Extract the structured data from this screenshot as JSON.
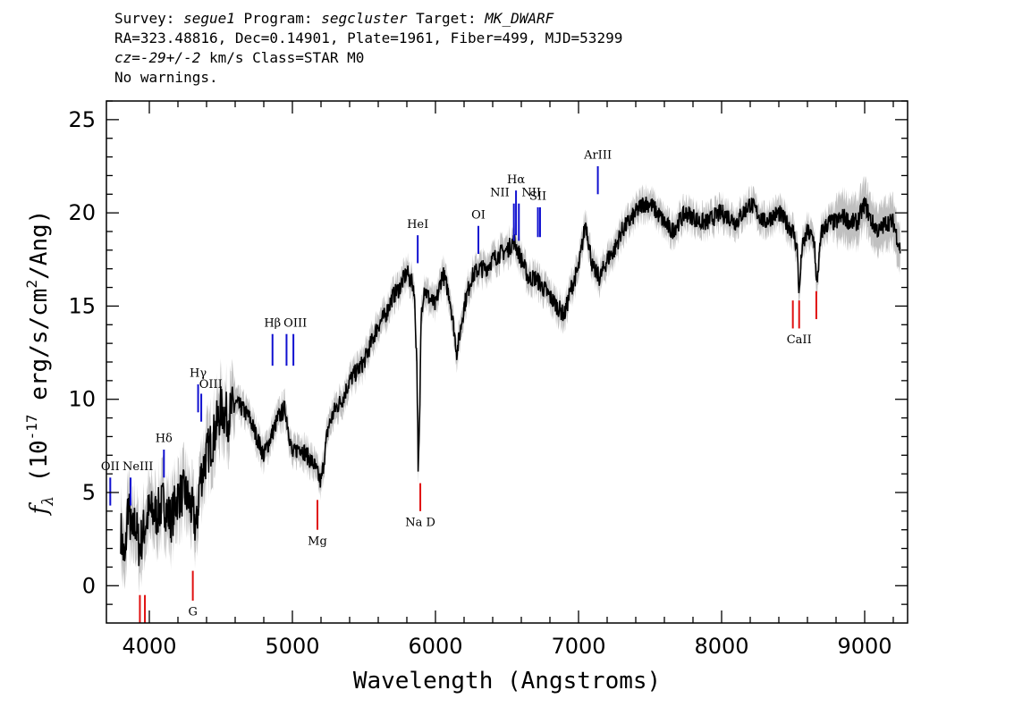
{
  "header": {
    "line1": {
      "survey_label": "Survey: ",
      "survey": "segue1",
      "program_label": " Program: ",
      "program": "segcluster",
      "target_label": " Target: ",
      "target": "MK_DWARF"
    },
    "line2": "RA=323.48816, Dec=0.14901, Plate=1961, Fiber=499, MJD=53299",
    "line3": {
      "cz": "cz=-29+/-2",
      "rest": " km/s Class=STAR M0"
    },
    "line4": "No warnings."
  },
  "colors": {
    "flux": "#000000",
    "error": "#c0c0c0",
    "emission": "#1010d0",
    "absorption": "#e01010"
  },
  "chart_data": {
    "type": "line",
    "xlabel": "Wavelength (Angstroms)",
    "ylabel": "f_λ (10^-17 erg/s/cm^2/Ang)",
    "ylabel_parts": {
      "main": "f",
      "sub": "λ",
      "a": " (10",
      "exp1": "-17",
      "b": " erg/s/cm",
      "exp2": "2",
      "c": "/Ang)"
    },
    "xlim": [
      3700,
      9300
    ],
    "ylim": [
      -2,
      26
    ],
    "xticks": [
      4000,
      5000,
      6000,
      7000,
      8000,
      9000
    ],
    "xtick_labels": [
      "4000",
      "5000",
      "6000",
      "7000",
      "8000",
      "9000"
    ],
    "yticks": [
      0,
      5,
      10,
      15,
      20,
      25
    ],
    "ytick_labels": [
      "0",
      "5",
      "10",
      "15",
      "20",
      "25"
    ],
    "grid": false,
    "series": [
      {
        "x": [
          3800,
          3830,
          3850,
          3880,
          3900,
          3930,
          3960,
          4000,
          4050,
          4100,
          4150,
          4200,
          4250,
          4300,
          4330,
          4350,
          4400,
          4450,
          4500,
          4550,
          4600,
          4650,
          4700,
          4750,
          4800,
          4850,
          4900,
          4950,
          5000,
          5050,
          5100,
          5150,
          5200,
          5250,
          5300,
          5350,
          5400,
          5450,
          5500,
          5550,
          5600,
          5650,
          5700,
          5750,
          5800,
          5850,
          5870,
          5880,
          5890,
          5900,
          5920,
          5950,
          6000,
          6050,
          6100,
          6150,
          6180,
          6200,
          6250,
          6300,
          6350,
          6400,
          6450,
          6500,
          6550,
          6600,
          6650,
          6700,
          6750,
          6800,
          6850,
          6900,
          6950,
          7000,
          7050,
          7100,
          7150,
          7200,
          7250,
          7300,
          7350,
          7400,
          7450,
          7500,
          7550,
          7600,
          7650,
          7700,
          7750,
          7800,
          7850,
          7900,
          7950,
          8000,
          8050,
          8100,
          8150,
          8200,
          8250,
          8300,
          8350,
          8400,
          8450,
          8500,
          8530,
          8542,
          8560,
          8600,
          8650,
          8662,
          8700,
          8750,
          8800,
          8850,
          8900,
          8950,
          9000,
          9050,
          9100,
          9150,
          9200,
          9250
        ],
        "y": [
          3.0,
          1.0,
          4.5,
          2.5,
          3.5,
          2.0,
          3.0,
          4.0,
          3.8,
          4.5,
          3.5,
          4.8,
          5.0,
          4.0,
          3.0,
          5.5,
          7.0,
          8.0,
          9.5,
          9.0,
          9.8,
          9.5,
          9.0,
          8.0,
          7.0,
          8.0,
          9.0,
          9.5,
          7.0,
          7.5,
          7.0,
          6.5,
          5.5,
          8.5,
          9.5,
          10.0,
          11.0,
          11.5,
          12.0,
          13.0,
          14.0,
          14.5,
          15.5,
          16.0,
          16.8,
          16.0,
          12.0,
          6.0,
          9.0,
          14.5,
          16.0,
          15.5,
          15.0,
          16.8,
          15.5,
          12.5,
          14.0,
          15.0,
          16.5,
          17.0,
          17.0,
          17.5,
          17.8,
          18.0,
          18.5,
          17.5,
          16.5,
          16.5,
          16.0,
          15.5,
          15.0,
          14.5,
          16.0,
          17.0,
          19.5,
          17.0,
          16.5,
          17.5,
          18.0,
          19.0,
          19.5,
          20.0,
          20.5,
          20.5,
          20.0,
          19.5,
          19.0,
          19.5,
          20.0,
          19.8,
          19.5,
          19.5,
          19.8,
          20.0,
          19.8,
          19.5,
          20.0,
          20.5,
          20.0,
          19.5,
          19.8,
          20.0,
          19.5,
          19.0,
          18.0,
          15.5,
          18.0,
          19.0,
          18.5,
          16.0,
          19.0,
          19.5,
          19.5,
          19.8,
          19.5,
          19.5,
          20.5,
          19.5,
          19.0,
          19.5,
          19.5,
          18.0
        ]
      }
    ],
    "emission_lines": [
      {
        "label": "OII",
        "x": 3727,
        "y0": 4.3,
        "y1": 5.8,
        "lx": 3727,
        "ly": 6.2
      },
      {
        "label": "NeIII",
        "x": 3869,
        "y0": 4.3,
        "y1": 5.8,
        "lx": 3920,
        "ly": 6.2
      },
      {
        "label": "Hδ",
        "x": 4102,
        "y0": 5.8,
        "y1": 7.3,
        "lx": 4102,
        "ly": 7.7
      },
      {
        "label": "Hγ",
        "x": 4341,
        "y0": 9.3,
        "y1": 10.8,
        "lx": 4341,
        "ly": 11.2
      },
      {
        "label": "OIII",
        "x": 4363,
        "y0": 8.8,
        "y1": 10.3,
        "lx": 4430,
        "ly": 10.6
      },
      {
        "label": "Hβ",
        "x": 4861,
        "y0": 11.8,
        "y1": 13.5,
        "lx": 4861,
        "ly": 13.9
      },
      {
        "label": "OIII",
        "x": 4959,
        "y0": 11.8,
        "y1": 13.5,
        "lx": 5020,
        "ly": 13.9
      },
      {
        "label": "OIII",
        "x": 5007,
        "y0": 11.8,
        "y1": 13.5,
        "lx": null,
        "ly": null
      },
      {
        "label": "HeI",
        "x": 5876,
        "y0": 17.3,
        "y1": 18.8,
        "lx": 5876,
        "ly": 19.2
      },
      {
        "label": "OI",
        "x": 6300,
        "y0": 17.8,
        "y1": 19.3,
        "lx": 6300,
        "ly": 19.7
      },
      {
        "label": "NII",
        "x": 6548,
        "y0": 18.5,
        "y1": 20.5,
        "lx": 6450,
        "ly": 20.9
      },
      {
        "label": "Hα",
        "x": 6563,
        "y0": 18.8,
        "y1": 21.2,
        "lx": 6563,
        "ly": 21.6
      },
      {
        "label": "NII",
        "x": 6583,
        "y0": 18.5,
        "y1": 20.5,
        "lx": 6670,
        "ly": 20.9
      },
      {
        "label": "SII",
        "x": 6716,
        "y0": 18.7,
        "y1": 20.3,
        "lx": 6716,
        "ly": 20.7
      },
      {
        "label": "SII",
        "x": 6731,
        "y0": 18.7,
        "y1": 20.3,
        "lx": null,
        "ly": null
      },
      {
        "label": "ArIII",
        "x": 7135,
        "y0": 21.0,
        "y1": 22.5,
        "lx": 7135,
        "ly": 22.9
      }
    ],
    "absorption_lines": [
      {
        "label": "",
        "x": 3934,
        "y0": -2.0,
        "y1": -0.5,
        "lx": null,
        "ly": null
      },
      {
        "label": "",
        "x": 3969,
        "y0": -2.0,
        "y1": -0.5,
        "lx": null,
        "ly": null
      },
      {
        "label": "G",
        "x": 4304,
        "y0": -0.8,
        "y1": 0.8,
        "lx": 4304,
        "ly": -1.6
      },
      {
        "label": "Mg",
        "x": 5175,
        "y0": 3.0,
        "y1": 4.6,
        "lx": 5175,
        "ly": 2.2
      },
      {
        "label": "Na D",
        "x": 5894,
        "y0": 4.0,
        "y1": 5.5,
        "lx": 5894,
        "ly": 3.2
      },
      {
        "label": "CaII",
        "x": 8498,
        "y0": 13.8,
        "y1": 15.3,
        "lx": 8542,
        "ly": 13.0
      },
      {
        "label": "",
        "x": 8542,
        "y0": 13.8,
        "y1": 15.3,
        "lx": null,
        "ly": null
      },
      {
        "label": "",
        "x": 8662,
        "y0": 14.3,
        "y1": 15.8,
        "lx": null,
        "ly": null
      }
    ]
  }
}
